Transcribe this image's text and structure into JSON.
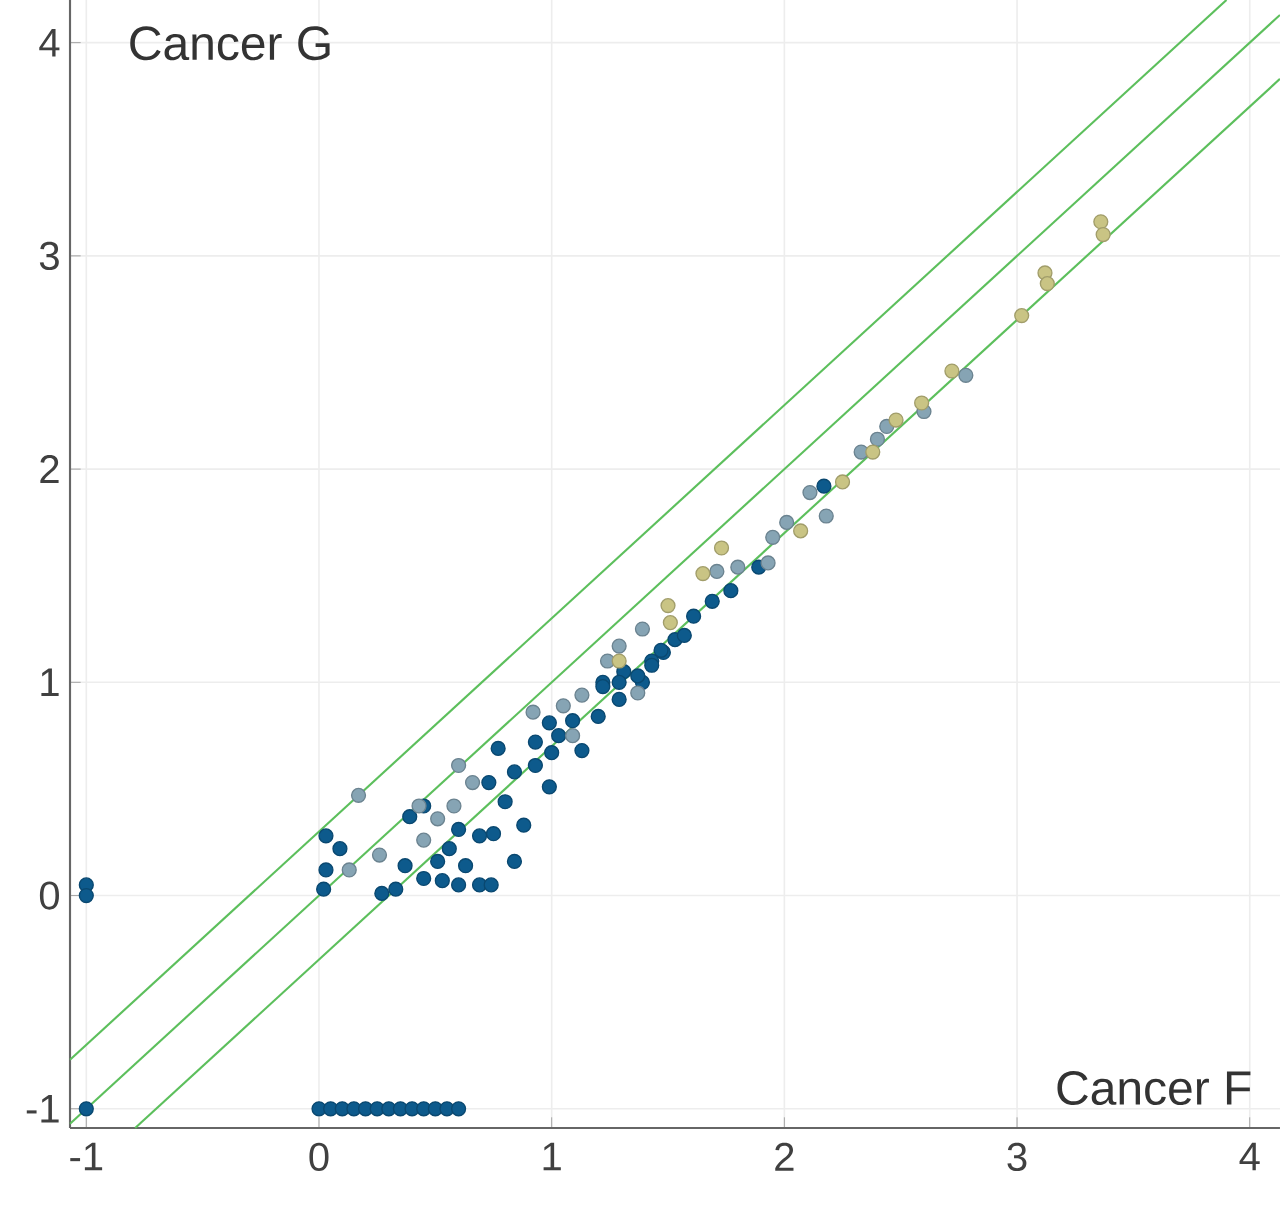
{
  "chart_data": {
    "type": "scatter",
    "xlabel": "Cancer F",
    "ylabel": "Cancer G",
    "xlim": [
      -1.07,
      4.13
    ],
    "ylim": [
      -1.09,
      4.2
    ],
    "xticks": [
      -1,
      0,
      1,
      2,
      3,
      4
    ],
    "yticks": [
      -1,
      0,
      1,
      2,
      3,
      4
    ],
    "grid": true,
    "marker": "circle",
    "series": [
      {
        "type": "line",
        "color": "#5cbf5c",
        "marker": "none",
        "x": [
          -1.07,
          3.9
        ],
        "values": [
          -0.77,
          4.2
        ]
      },
      {
        "type": "line",
        "color": "#5cbf5c",
        "marker": "none",
        "x": [
          -1.07,
          4.13
        ],
        "values": [
          -1.07,
          4.13
        ]
      },
      {
        "type": "line",
        "color": "#5cbf5c",
        "marker": "none",
        "x": [
          -0.79,
          4.13
        ],
        "values": [
          -1.09,
          3.83
        ]
      },
      {
        "color": "#0d5a8c",
        "x": [
          -1,
          -1,
          -1,
          0,
          0.05,
          0.1,
          0.15,
          0.2,
          0.25,
          0.3,
          0.35,
          0.4,
          0.45,
          0.5,
          0.55,
          0.6,
          0.03,
          0.09,
          0.03,
          0.02,
          0.27,
          0.33,
          0.39,
          0.45,
          0.37,
          0.45,
          0.53,
          0.6,
          0.69,
          0.74,
          0.56,
          0.6,
          0.69,
          0.75,
          0.84,
          0.88,
          0.73,
          0.8,
          0.84,
          0.77,
          0.93,
          0.99,
          0.93,
          1.0,
          1.03,
          1.13,
          1.09,
          1.2,
          1.22,
          1.29,
          1.31,
          1.39,
          1.43,
          1.48,
          1.53,
          2.17,
          1.89,
          1.77,
          1.69,
          1.61,
          1.57,
          1.47,
          1.43,
          1.37,
          1.29,
          1.22,
          0.99,
          0.51,
          0.63
        ],
        "values": [
          -1,
          0.05,
          0.0,
          -1,
          -1,
          -1,
          -1,
          -1,
          -1,
          -1,
          -1,
          -1,
          -1,
          -1,
          -1,
          -1,
          0.28,
          0.22,
          0.12,
          0.03,
          0.01,
          0.03,
          0.37,
          0.42,
          0.14,
          0.08,
          0.07,
          0.05,
          0.05,
          0.05,
          0.22,
          0.31,
          0.28,
          0.29,
          0.16,
          0.33,
          0.53,
          0.44,
          0.58,
          0.69,
          0.72,
          0.51,
          0.61,
          0.67,
          0.75,
          0.68,
          0.82,
          0.84,
          1.0,
          0.92,
          1.05,
          1.0,
          1.1,
          1.14,
          1.2,
          1.92,
          1.54,
          1.43,
          1.38,
          1.31,
          1.22,
          1.15,
          1.08,
          1.03,
          1.0,
          0.98,
          0.81,
          0.16,
          0.14
        ]
      },
      {
        "color": "#86a4b4",
        "x": [
          0.17,
          0.26,
          0.13,
          0.43,
          0.51,
          0.58,
          0.45,
          0.6,
          0.66,
          0.92,
          1.05,
          1.13,
          1.09,
          1.23,
          1.37,
          1.71,
          1.8,
          1.93,
          1.95,
          2.01,
          2.11,
          2.18,
          1.39,
          1.29,
          1.24,
          2.33,
          2.4,
          2.44,
          2.6,
          2.78
        ],
        "values": [
          0.47,
          0.19,
          0.12,
          0.42,
          0.36,
          0.42,
          0.26,
          0.61,
          0.53,
          0.86,
          0.89,
          0.94,
          0.75,
          null,
          0.95,
          1.52,
          1.54,
          1.56,
          1.68,
          1.75,
          1.89,
          1.78,
          1.25,
          1.17,
          1.1,
          2.08,
          2.14,
          2.2,
          2.27,
          2.44
        ]
      },
      {
        "color": "#c9c484",
        "x": [
          1.65,
          1.5,
          1.51,
          1.29,
          1.73,
          2.07,
          2.25,
          2.38,
          2.48,
          2.59,
          2.72,
          3.02,
          3.12,
          3.13,
          3.36,
          3.37
        ],
        "values": [
          1.51,
          1.36,
          1.28,
          1.1,
          1.63,
          1.71,
          1.94,
          2.08,
          2.23,
          2.31,
          2.46,
          2.72,
          2.92,
          2.87,
          3.16,
          3.1
        ]
      }
    ]
  }
}
